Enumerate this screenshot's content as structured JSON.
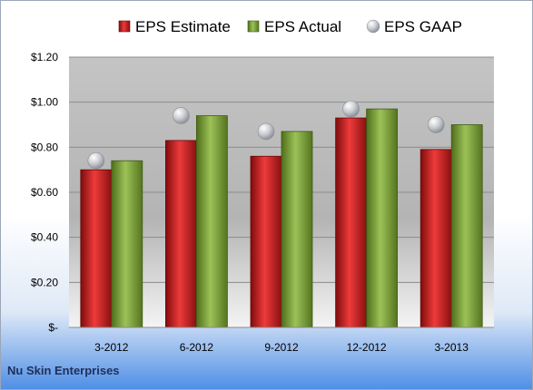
{
  "chart_data": {
    "type": "bar",
    "title": "",
    "xlabel": "",
    "ylabel": "",
    "categories": [
      "3-2012",
      "6-2012",
      "9-2012",
      "12-2012",
      "3-2013"
    ],
    "series": [
      {
        "name": "EPS Estimate",
        "kind": "bar",
        "color": "#cc1a1a",
        "values": [
          0.7,
          0.83,
          0.76,
          0.93,
          0.79
        ]
      },
      {
        "name": "EPS Actual",
        "kind": "bar",
        "color": "#7fa23a",
        "values": [
          0.74,
          0.94,
          0.87,
          0.97,
          0.9
        ]
      },
      {
        "name": "EPS GAAP",
        "kind": "scatter",
        "color": "#b8bcc2",
        "values": [
          0.74,
          0.94,
          0.87,
          0.97,
          0.9
        ]
      }
    ],
    "ylim": [
      0,
      1.2
    ],
    "yticks": [
      {
        "value": 0,
        "label": "$-"
      },
      {
        "value": 0.2,
        "label": "$0.20"
      },
      {
        "value": 0.4,
        "label": "$0.40"
      },
      {
        "value": 0.6,
        "label": "$0.60"
      },
      {
        "value": 0.8,
        "label": "$0.80"
      },
      {
        "value": 1.0,
        "label": "$1.00"
      },
      {
        "value": 1.2,
        "label": "$1.20"
      }
    ],
    "grid": true,
    "legend": "top"
  },
  "footer": {
    "company": "Nu Skin Enterprises"
  }
}
